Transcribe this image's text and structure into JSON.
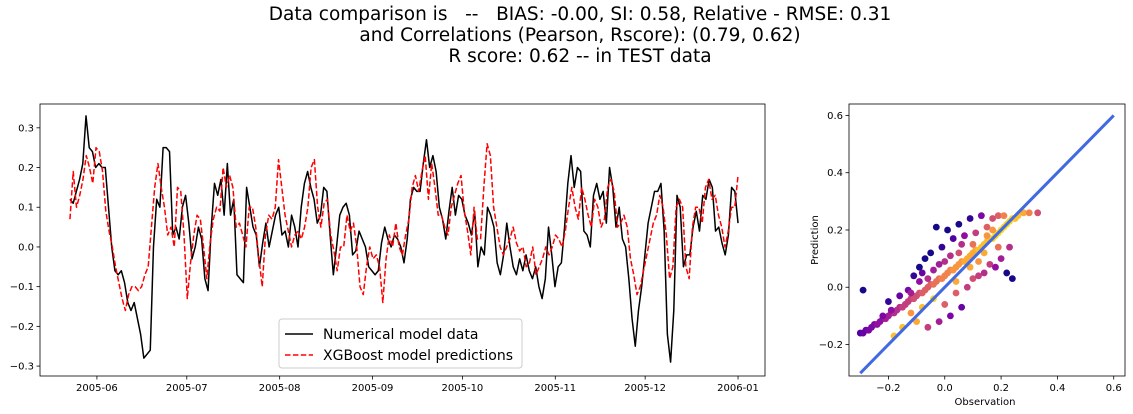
{
  "figure": {
    "title_lines": [
      "Data comparison is   --   BIAS: -0.00, SI: 0.58, Relative - RMSE: 0.31",
      "and Correlations (Pearson, Rscore): (0.79, 0.62)",
      "R score: 0.62 -- in TEST data"
    ]
  },
  "chart_data": [
    {
      "type": "line",
      "title": "",
      "xlabel": "",
      "ylabel": "",
      "x_start": "2005-05-23",
      "x_end": "2006-01-01",
      "xlim": [
        "2005-05-13",
        "2006-01-10"
      ],
      "ylim": [
        -0.325,
        0.36
      ],
      "x_ticks": [
        "2005-06",
        "2005-07",
        "2005-08",
        "2005-09",
        "2005-10",
        "2005-11",
        "2005-12",
        "2006-01"
      ],
      "x_tick_dates": [
        "2005-06-01",
        "2005-07-01",
        "2005-08-01",
        "2005-09-01",
        "2005-10-01",
        "2005-11-01",
        "2005-12-01",
        "2006-01-01"
      ],
      "y_ticks": [
        0.3,
        0.2,
        0.1,
        0.0,
        -0.1,
        -0.2,
        -0.3
      ],
      "y_tick_labels": [
        "0.3",
        "0.2",
        "0.1",
        "0.0",
        "−0.1",
        "−0.2",
        "−0.3"
      ],
      "grid": false,
      "legend_position": "bottom-center",
      "series": [
        {
          "name": "Numerical model data",
          "color": "#000000",
          "style": "solid",
          "values": [
            0.12,
            0.11,
            0.14,
            0.17,
            0.21,
            0.33,
            0.25,
            0.24,
            0.2,
            0.21,
            0.2,
            0.2,
            0.1,
            0.0,
            -0.06,
            -0.07,
            -0.06,
            -0.09,
            -0.14,
            -0.16,
            -0.14,
            -0.18,
            -0.22,
            -0.28,
            -0.27,
            -0.26,
            0.0,
            0.12,
            0.1,
            0.25,
            0.25,
            0.24,
            0.03,
            0.05,
            0.02,
            0.1,
            0.13,
            0.06,
            -0.03,
            0.0,
            0.05,
            0.02,
            -0.08,
            -0.11,
            0.05,
            0.16,
            0.13,
            0.17,
            0.08,
            0.21,
            0.08,
            0.12,
            -0.07,
            -0.08,
            -0.09,
            0.15,
            0.1,
            0.05,
            0.03,
            -0.05,
            0.01,
            0.06,
            0.0,
            0.04,
            0.08,
            0.1,
            0.03,
            0.04,
            0.0,
            0.08,
            0.05,
            0.0,
            0.1,
            0.16,
            0.19,
            0.15,
            0.12,
            0.06,
            0.08,
            0.15,
            0.14,
            0.03,
            -0.07,
            0.0,
            0.08,
            0.1,
            0.11,
            0.08,
            -0.02,
            -0.01,
            0.04,
            0.02,
            0.0,
            -0.05,
            -0.06,
            -0.07,
            -0.06,
            0.01,
            0.05,
            0.02,
            0.0,
            0.03,
            0.02,
            0.0,
            -0.04,
            0.02,
            0.12,
            0.15,
            0.14,
            0.14,
            0.21,
            0.27,
            0.2,
            0.23,
            0.19,
            0.1,
            0.07,
            0.02,
            0.09,
            0.15,
            0.08,
            0.13,
            0.12,
            0.08,
            0.06,
            0.03,
            0.09,
            -0.05,
            0.0,
            -0.02,
            0.1,
            0.08,
            0.05,
            -0.04,
            -0.07,
            -0.02,
            0.06,
            0.0,
            -0.05,
            -0.07,
            -0.03,
            -0.06,
            -0.02,
            -0.06,
            -0.08,
            -0.05,
            -0.1,
            -0.13,
            -0.08,
            0.05,
            -0.02,
            -0.1,
            -0.05,
            -0.04,
            0.05,
            0.16,
            0.23,
            0.15,
            0.2,
            0.19,
            0.04,
            0.03,
            0.0,
            0.13,
            0.16,
            0.12,
            0.14,
            0.06,
            0.2,
            0.15,
            0.05,
            0.1,
            0.02,
            0.0,
            -0.08,
            -0.18,
            -0.25,
            -0.16,
            -0.1,
            -0.02,
            0.06,
            0.1,
            0.14,
            0.14,
            0.16,
            0.04,
            -0.22,
            -0.29,
            -0.16,
            0.13,
            0.1,
            -0.05,
            -0.02,
            -0.02,
            0.05,
            0.09,
            0.04,
            0.13,
            0.12,
            0.17,
            0.15,
            0.04,
            0.05,
            0.01,
            -0.02,
            0.03,
            0.15,
            0.14,
            0.06
          ]
        },
        {
          "name": "XGBoost model predictions",
          "color": "#ff0000",
          "style": "dashed",
          "values": [
            0.07,
            0.19,
            0.1,
            0.13,
            0.17,
            0.23,
            0.2,
            0.16,
            0.25,
            0.24,
            0.19,
            0.09,
            0.04,
            0.0,
            -0.05,
            -0.09,
            -0.13,
            -0.16,
            -0.12,
            -0.1,
            -0.1,
            -0.11,
            -0.1,
            -0.07,
            -0.05,
            0.05,
            0.15,
            0.21,
            0.15,
            0.1,
            0.03,
            0.05,
            0.0,
            0.15,
            0.14,
            0.03,
            -0.13,
            -0.04,
            0.03,
            0.08,
            0.07,
            0.0,
            -0.08,
            0.01,
            0.07,
            0.1,
            0.09,
            0.2,
            0.15,
            0.18,
            0.15,
            0.05,
            0.06,
            0.03,
            0.0,
            0.1,
            0.1,
            0.05,
            -0.03,
            -0.1,
            0.03,
            0.08,
            0.07,
            0.1,
            0.22,
            0.15,
            0.08,
            0.04,
            0.0,
            0.03,
            0.04,
            0.02,
            0.05,
            0.1,
            0.2,
            0.22,
            0.1,
            0.05,
            0.11,
            0.12,
            0.03,
            -0.01,
            -0.06,
            0.0,
            0.0,
            0.08,
            0.04,
            0.06,
            0.0,
            -0.1,
            -0.12,
            -0.05,
            0.0,
            -0.03,
            -0.02,
            -0.05,
            -0.14,
            -0.03,
            0.03,
            0.0,
            0.06,
            0.0,
            -0.02,
            0.03,
            0.07,
            0.15,
            0.18,
            0.14,
            0.19,
            0.23,
            0.12,
            0.21,
            0.15,
            0.08,
            0.08,
            0.05,
            0.03,
            0.1,
            0.13,
            0.16,
            0.18,
            0.09,
            0.04,
            -0.02,
            0.1,
            0.02,
            0.02,
            0.15,
            0.26,
            0.23,
            0.1,
            0.05,
            0.0,
            -0.02,
            0.0,
            0.02,
            0.05,
            0.01,
            -0.01,
            0.0,
            -0.05,
            -0.04,
            0.0,
            -0.07,
            -0.05,
            -0.03,
            0.0,
            -0.02,
            0.0,
            0.03,
            0.02,
            0.0,
            0.04,
            0.1,
            0.15,
            0.1,
            0.07,
            0.15,
            0.12,
            0.08,
            0.05,
            0.12,
            0.1,
            0.05,
            0.07,
            0.15,
            0.17,
            0.14,
            0.05,
            0.06,
            0.08,
            0.05,
            -0.03,
            -0.07,
            -0.12,
            -0.1,
            -0.06,
            -0.02,
            0.02,
            0.06,
            0.08,
            0.13,
            0.1,
            0.03,
            -0.08,
            -0.05,
            0.1,
            0.12,
            0.1,
            -0.05,
            -0.08,
            0.05,
            0.1,
            0.1,
            0.06,
            0.15,
            0.17,
            0.12,
            0.13,
            0.08,
            0.05,
            0.0,
            0.04,
            0.1,
            0.1,
            0.18
          ]
        }
      ]
    },
    {
      "type": "scatter",
      "title": "",
      "xlabel": "Observation",
      "ylabel": "Prediction",
      "xlim": [
        -0.34,
        0.64
      ],
      "ylim": [
        -0.31,
        0.64
      ],
      "x_ticks": [
        -0.2,
        0.0,
        0.2,
        0.4,
        0.6
      ],
      "x_tick_labels": [
        "−0.2",
        "0.0",
        "0.2",
        "0.4",
        "0.6"
      ],
      "y_ticks": [
        0.6,
        0.4,
        0.2,
        0.0,
        -0.2
      ],
      "y_tick_labels": [
        "0.6",
        "0.4",
        "0.2",
        "0.0",
        "−0.2"
      ],
      "grid": false,
      "identity_line": {
        "from": [
          -0.3,
          -0.3
        ],
        "to": [
          0.6,
          0.6
        ],
        "color": "#4169e1"
      },
      "colormap": "plasma",
      "points": [
        {
          "x": -0.3,
          "y": -0.16
        },
        {
          "x": -0.29,
          "y": -0.16
        },
        {
          "x": -0.28,
          "y": -0.15
        },
        {
          "x": -0.27,
          "y": -0.15
        },
        {
          "x": -0.26,
          "y": -0.14
        },
        {
          "x": -0.25,
          "y": -0.13
        },
        {
          "x": -0.24,
          "y": -0.13
        },
        {
          "x": -0.23,
          "y": -0.12
        },
        {
          "x": -0.22,
          "y": -0.11
        },
        {
          "x": -0.21,
          "y": -0.11
        },
        {
          "x": -0.2,
          "y": -0.1
        },
        {
          "x": -0.19,
          "y": -0.09
        },
        {
          "x": -0.18,
          "y": -0.09
        },
        {
          "x": -0.17,
          "y": -0.08
        },
        {
          "x": -0.16,
          "y": -0.07
        },
        {
          "x": -0.15,
          "y": -0.07
        },
        {
          "x": -0.14,
          "y": -0.06
        },
        {
          "x": -0.13,
          "y": -0.05
        },
        {
          "x": -0.12,
          "y": -0.04
        },
        {
          "x": -0.11,
          "y": -0.04
        },
        {
          "x": -0.1,
          "y": -0.03
        },
        {
          "x": -0.09,
          "y": -0.02
        },
        {
          "x": -0.08,
          "y": -0.02
        },
        {
          "x": -0.07,
          "y": -0.01
        },
        {
          "x": -0.06,
          "y": 0.0
        },
        {
          "x": -0.05,
          "y": 0.01
        },
        {
          "x": -0.04,
          "y": 0.01
        },
        {
          "x": -0.03,
          "y": 0.02
        },
        {
          "x": -0.02,
          "y": 0.03
        },
        {
          "x": -0.01,
          "y": 0.03
        },
        {
          "x": 0.0,
          "y": 0.04
        },
        {
          "x": 0.01,
          "y": 0.05
        },
        {
          "x": 0.02,
          "y": 0.06
        },
        {
          "x": 0.03,
          "y": 0.06
        },
        {
          "x": 0.04,
          "y": 0.07
        },
        {
          "x": 0.05,
          "y": 0.08
        },
        {
          "x": 0.06,
          "y": 0.09
        },
        {
          "x": 0.07,
          "y": 0.09
        },
        {
          "x": 0.08,
          "y": 0.1
        },
        {
          "x": 0.09,
          "y": 0.11
        },
        {
          "x": 0.1,
          "y": 0.12
        },
        {
          "x": 0.11,
          "y": 0.13
        },
        {
          "x": 0.12,
          "y": 0.13
        },
        {
          "x": 0.13,
          "y": 0.14
        },
        {
          "x": 0.14,
          "y": 0.15
        },
        {
          "x": 0.15,
          "y": 0.16
        },
        {
          "x": 0.16,
          "y": 0.17
        },
        {
          "x": 0.17,
          "y": 0.17
        },
        {
          "x": 0.18,
          "y": 0.18
        },
        {
          "x": 0.19,
          "y": 0.19
        },
        {
          "x": 0.2,
          "y": 0.2
        },
        {
          "x": 0.21,
          "y": 0.21
        },
        {
          "x": 0.22,
          "y": 0.22
        },
        {
          "x": 0.23,
          "y": 0.23
        },
        {
          "x": 0.24,
          "y": 0.24
        },
        {
          "x": 0.25,
          "y": 0.24
        },
        {
          "x": 0.26,
          "y": 0.25
        },
        {
          "x": 0.28,
          "y": 0.26
        },
        {
          "x": 0.3,
          "y": 0.26
        },
        {
          "x": 0.33,
          "y": 0.26
        },
        {
          "x": -0.29,
          "y": -0.01
        },
        {
          "x": -0.22,
          "y": -0.1
        },
        {
          "x": -0.2,
          "y": -0.05
        },
        {
          "x": -0.18,
          "y": -0.17
        },
        {
          "x": -0.16,
          "y": -0.03
        },
        {
          "x": -0.15,
          "y": -0.14
        },
        {
          "x": -0.13,
          "y": -0.01
        },
        {
          "x": -0.12,
          "y": -0.09
        },
        {
          "x": -0.11,
          "y": 0.04
        },
        {
          "x": -0.1,
          "y": -0.12
        },
        {
          "x": -0.09,
          "y": 0.07
        },
        {
          "x": -0.08,
          "y": -0.07
        },
        {
          "x": -0.07,
          "y": 0.1
        },
        {
          "x": -0.06,
          "y": -0.14
        },
        {
          "x": -0.05,
          "y": 0.12
        },
        {
          "x": -0.04,
          "y": -0.04
        },
        {
          "x": -0.03,
          "y": 0.21
        },
        {
          "x": -0.02,
          "y": -0.12
        },
        {
          "x": -0.01,
          "y": 0.14
        },
        {
          "x": 0.0,
          "y": -0.06
        },
        {
          "x": 0.01,
          "y": 0.2
        },
        {
          "x": 0.02,
          "y": -0.1
        },
        {
          "x": 0.03,
          "y": 0.17
        },
        {
          "x": 0.04,
          "y": -0.02
        },
        {
          "x": 0.05,
          "y": 0.22
        },
        {
          "x": 0.06,
          "y": -0.07
        },
        {
          "x": 0.07,
          "y": 0.18
        },
        {
          "x": 0.08,
          "y": 0.0
        },
        {
          "x": 0.09,
          "y": 0.24
        },
        {
          "x": 0.1,
          "y": 0.03
        },
        {
          "x": 0.11,
          "y": 0.19
        },
        {
          "x": 0.12,
          "y": 0.04
        },
        {
          "x": 0.13,
          "y": 0.25
        },
        {
          "x": 0.14,
          "y": 0.05
        },
        {
          "x": 0.15,
          "y": 0.21
        },
        {
          "x": 0.16,
          "y": 0.08
        },
        {
          "x": 0.17,
          "y": 0.24
        },
        {
          "x": 0.18,
          "y": 0.07
        },
        {
          "x": 0.19,
          "y": 0.25
        },
        {
          "x": 0.2,
          "y": 0.1
        },
        {
          "x": 0.21,
          "y": 0.25
        },
        {
          "x": 0.22,
          "y": 0.05
        },
        {
          "x": 0.23,
          "y": 0.14
        },
        {
          "x": 0.24,
          "y": 0.03
        },
        {
          "x": -0.19,
          "y": -0.08
        },
        {
          "x": -0.14,
          "y": -0.06
        },
        {
          "x": -0.09,
          "y": 0.02
        },
        {
          "x": -0.04,
          "y": 0.06
        },
        {
          "x": 0.0,
          "y": 0.09
        },
        {
          "x": 0.05,
          "y": 0.12
        },
        {
          "x": 0.1,
          "y": 0.15
        },
        {
          "x": 0.15,
          "y": 0.18
        },
        {
          "x": -0.08,
          "y": 0.05
        },
        {
          "x": -0.02,
          "y": 0.08
        },
        {
          "x": 0.04,
          "y": 0.02
        },
        {
          "x": 0.09,
          "y": 0.07
        },
        {
          "x": 0.14,
          "y": 0.12
        },
        {
          "x": 0.19,
          "y": 0.14
        },
        {
          "x": -0.12,
          "y": -0.02
        },
        {
          "x": 0.06,
          "y": 0.15
        },
        {
          "x": -0.06,
          "y": 0.03
        },
        {
          "x": 0.12,
          "y": 0.09
        },
        {
          "x": 0.02,
          "y": 0.11
        },
        {
          "x": 0.17,
          "y": 0.2
        }
      ]
    }
  ],
  "palette": {
    "axis": "#000000",
    "background": "#ffffff",
    "legend_border": "#cccccc"
  }
}
